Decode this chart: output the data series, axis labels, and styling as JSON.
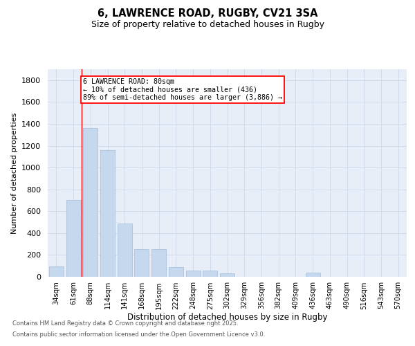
{
  "title_line1": "6, LAWRENCE ROAD, RUGBY, CV21 3SA",
  "title_line2": "Size of property relative to detached houses in Rugby",
  "xlabel": "Distribution of detached houses by size in Rugby",
  "ylabel": "Number of detached properties",
  "categories": [
    "34sqm",
    "61sqm",
    "88sqm",
    "114sqm",
    "141sqm",
    "168sqm",
    "195sqm",
    "222sqm",
    "248sqm",
    "275sqm",
    "302sqm",
    "329sqm",
    "356sqm",
    "382sqm",
    "409sqm",
    "436sqm",
    "463sqm",
    "490sqm",
    "516sqm",
    "543sqm",
    "570sqm"
  ],
  "values": [
    95,
    700,
    1360,
    1160,
    490,
    255,
    255,
    90,
    55,
    55,
    30,
    0,
    0,
    0,
    0,
    35,
    0,
    0,
    0,
    0,
    0
  ],
  "bar_color": "#c5d8ed",
  "bar_edge_color": "#a0bcd8",
  "grid_color": "#d0daea",
  "plot_bg_color": "#e8eef8",
  "annotation_label": "6 LAWRENCE ROAD: 80sqm\n← 10% of detached houses are smaller (436)\n89% of semi-detached houses are larger (3,886) →",
  "vline_x_index": 1.5,
  "ylim": [
    0,
    1900
  ],
  "yticks": [
    0,
    200,
    400,
    600,
    800,
    1000,
    1200,
    1400,
    1600,
    1800
  ],
  "footer_line1": "Contains HM Land Registry data © Crown copyright and database right 2025.",
  "footer_line2": "Contains public sector information licensed under the Open Government Licence v3.0."
}
